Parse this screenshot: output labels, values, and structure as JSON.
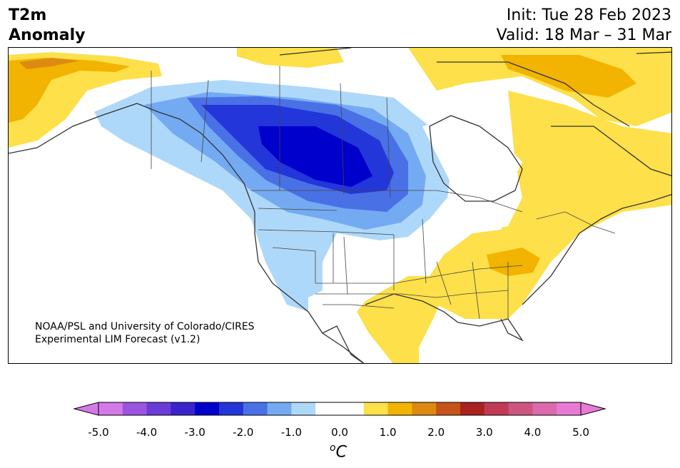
{
  "title": {
    "line1": "T2m",
    "line2": "Anomaly"
  },
  "dates": {
    "init": "Init: Tue 28 Feb 2023",
    "valid": "Valid: 18 Mar – 31 Mar"
  },
  "credit": {
    "line1": "NOAA/PSL and University of Colorado/CIRES",
    "line2": "Experimental LIM Forecast (v1.2)"
  },
  "colorbar": {
    "ticks": [
      "-5.0",
      "-4.0",
      "-3.0",
      "-2.0",
      "-1.0",
      "0.0",
      "1.0",
      "2.0",
      "3.0",
      "4.0",
      "5.0"
    ],
    "unit_sup": "o",
    "unit": "C",
    "colors": [
      "#d37ae8",
      "#9a55e0",
      "#6b3bd8",
      "#3a23cc",
      "#0000cc",
      "#2236d9",
      "#4a70e6",
      "#74aaf2",
      "#aed8f9",
      "#ffffff",
      "#ffffff",
      "#fde04a",
      "#f2b400",
      "#dd8a12",
      "#c65318",
      "#a82220",
      "#c03a56",
      "#cd5580",
      "#da6aac",
      "#e87ad6"
    ]
  },
  "legend_colors": {
    "cold_1": "#aed8f9",
    "cold_2": "#74aaf2",
    "cold_3": "#4a70e6",
    "cold_4": "#2236d9",
    "cold_5": "#0000cc",
    "warm_1": "#fde04a",
    "warm_2": "#f2b400",
    "warm_3": "#dd8a12"
  }
}
